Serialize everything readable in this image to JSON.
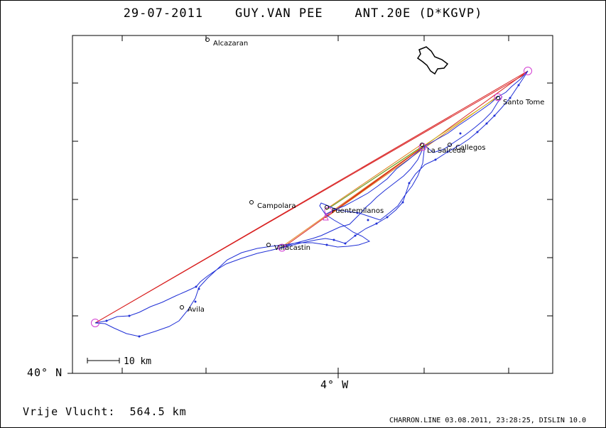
{
  "title": {
    "date": "29-07-2011",
    "pilot": "GUY.VAN PEE",
    "glider": "ANT.20E (D*KGVP)"
  },
  "axes": {
    "lat_label": "40° N",
    "lon_label": "4° W"
  },
  "scale": {
    "label": "10 km"
  },
  "distance_text": "Vrije Vlucht:  564.5 km",
  "footer_text": "CHARRON.LINE 03.08.2011, 23:28:25, DISLIN 10.0",
  "places": [
    {
      "name": "Alcazaran"
    },
    {
      "name": "Campolara"
    },
    {
      "name": "Fuentemilanos"
    },
    {
      "name": "Villacastin"
    },
    {
      "name": "Avila"
    },
    {
      "name": "La Salceda"
    },
    {
      "name": "Callegos"
    },
    {
      "name": "Santo Tome"
    }
  ],
  "colors": {
    "track": "#1f2fd6",
    "legs_red": "#d81e1e",
    "legs_orange": "#e07a10",
    "legs_yellow": "#c9c020",
    "turnpoint": "#d23cd2"
  }
}
